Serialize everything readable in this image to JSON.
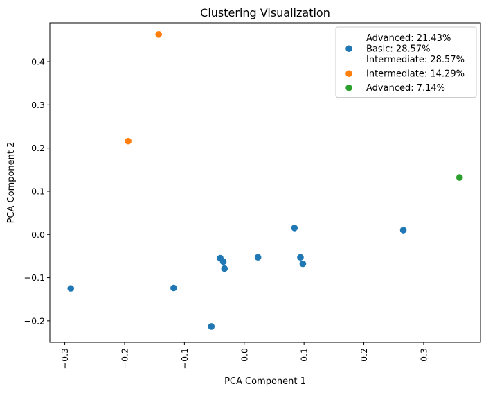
{
  "chart_data": {
    "type": "scatter",
    "title": "Clustering Visualization",
    "xlabel": "PCA Component 1",
    "ylabel": "PCA Component 2",
    "xlim": [
      -0.325,
      0.395
    ],
    "ylim": [
      -0.25,
      0.49
    ],
    "x_ticks": [
      {
        "value": -0.3,
        "label": "−0.3"
      },
      {
        "value": -0.2,
        "label": "−0.2"
      },
      {
        "value": -0.1,
        "label": "−0.1"
      },
      {
        "value": 0.0,
        "label": "0.0"
      },
      {
        "value": 0.1,
        "label": "0.1"
      },
      {
        "value": 0.2,
        "label": "0.2"
      },
      {
        "value": 0.3,
        "label": "0.3"
      }
    ],
    "y_ticks": [
      {
        "value": -0.2,
        "label": "−0.2"
      },
      {
        "value": -0.1,
        "label": "−0.1"
      },
      {
        "value": 0.0,
        "label": "0.0"
      },
      {
        "value": 0.1,
        "label": "0.1"
      },
      {
        "value": 0.2,
        "label": "0.2"
      },
      {
        "value": 0.3,
        "label": "0.3"
      },
      {
        "value": 0.4,
        "label": "0.4"
      }
    ],
    "x_tick_rotation": "vertical",
    "grid": false,
    "legend_position": "top-right",
    "series": [
      {
        "name": "Advanced: 21.43%\nBasic: 28.57%\nIntermediate: 28.57%",
        "color": "#1f77b4",
        "points": [
          [
            -0.29,
            -0.125
          ],
          [
            -0.118,
            -0.124
          ],
          [
            -0.055,
            -0.213
          ],
          [
            -0.04,
            -0.055
          ],
          [
            -0.035,
            -0.063
          ],
          [
            -0.033,
            -0.079
          ],
          [
            0.023,
            -0.053
          ],
          [
            0.084,
            0.015
          ],
          [
            0.094,
            -0.053
          ],
          [
            0.098,
            -0.068
          ],
          [
            0.266,
            0.01
          ]
        ]
      },
      {
        "name": "Intermediate: 14.29%",
        "color": "#ff7f0e",
        "points": [
          [
            -0.194,
            0.216
          ],
          [
            -0.143,
            0.463
          ]
        ]
      },
      {
        "name": "Advanced: 7.14%",
        "color": "#2ca02c",
        "points": [
          [
            0.36,
            0.132
          ]
        ]
      }
    ]
  }
}
